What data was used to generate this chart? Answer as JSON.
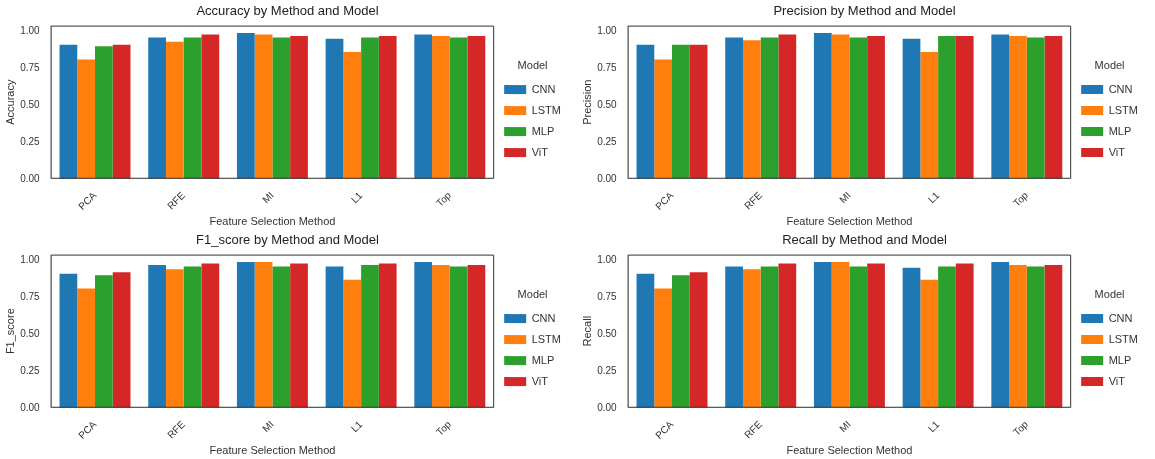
{
  "chart_data": [
    {
      "type": "bar",
      "title": "Accuracy by Method and Model",
      "xlabel": "Feature Selection Method",
      "ylabel": "Accuracy",
      "legend_title": "Model",
      "legend": "right",
      "grid": false,
      "categories": [
        "PCA",
        "RFE",
        "MI",
        "L1",
        "Top"
      ],
      "ylim": [
        0,
        1.04
      ],
      "yticks": [
        {
          "value": 0,
          "label": "0.00"
        },
        {
          "value": 0.25,
          "label": "0.25"
        },
        {
          "value": 0.5,
          "label": "0.50"
        },
        {
          "value": 0.75,
          "label": "0.75"
        },
        {
          "value": 1,
          "label": "1.00"
        }
      ],
      "series": [
        {
          "name": "CNN",
          "color": "#1f77b4",
          "values": [
            0.91,
            0.96,
            0.99,
            0.95,
            0.98
          ]
        },
        {
          "name": "LSTM",
          "color": "#ff7f0e",
          "values": [
            0.81,
            0.93,
            0.98,
            0.86,
            0.97
          ]
        },
        {
          "name": "MLP",
          "color": "#2ca02c",
          "values": [
            0.9,
            0.96,
            0.96,
            0.96,
            0.96
          ]
        },
        {
          "name": "ViT",
          "color": "#d62728",
          "values": [
            0.91,
            0.98,
            0.97,
            0.97,
            0.97
          ]
        }
      ]
    },
    {
      "type": "bar",
      "title": "Precision by Method and Model",
      "xlabel": "Feature Selection Method",
      "ylabel": "Precision",
      "legend_title": "Model",
      "legend": "right",
      "grid": false,
      "categories": [
        "PCA",
        "RFE",
        "MI",
        "L1",
        "Top"
      ],
      "ylim": [
        0,
        1.04
      ],
      "yticks": [
        {
          "value": 0,
          "label": "0.00"
        },
        {
          "value": 0.25,
          "label": "0.25"
        },
        {
          "value": 0.5,
          "label": "0.50"
        },
        {
          "value": 0.75,
          "label": "0.75"
        },
        {
          "value": 1,
          "label": "1.00"
        }
      ],
      "series": [
        {
          "name": "CNN",
          "color": "#1f77b4",
          "values": [
            0.91,
            0.96,
            0.99,
            0.95,
            0.98
          ]
        },
        {
          "name": "LSTM",
          "color": "#ff7f0e",
          "values": [
            0.81,
            0.94,
            0.98,
            0.86,
            0.97
          ]
        },
        {
          "name": "MLP",
          "color": "#2ca02c",
          "values": [
            0.91,
            0.96,
            0.96,
            0.97,
            0.96
          ]
        },
        {
          "name": "ViT",
          "color": "#d62728",
          "values": [
            0.91,
            0.98,
            0.97,
            0.97,
            0.97
          ]
        }
      ]
    },
    {
      "type": "bar",
      "title": "F1_score by Method and Model",
      "xlabel": "Feature Selection Method",
      "ylabel": "F1_score",
      "legend_title": "Model",
      "legend": "right",
      "grid": false,
      "categories": [
        "PCA",
        "RFE",
        "MI",
        "L1",
        "Top"
      ],
      "ylim": [
        0,
        1.04
      ],
      "yticks": [
        {
          "value": 0,
          "label": "0.00"
        },
        {
          "value": 0.25,
          "label": "0.25"
        },
        {
          "value": 0.5,
          "label": "0.50"
        },
        {
          "value": 0.75,
          "label": "0.75"
        },
        {
          "value": 1,
          "label": "1.00"
        }
      ],
      "series": [
        {
          "name": "CNN",
          "color": "#1f77b4",
          "values": [
            0.91,
            0.97,
            0.99,
            0.96,
            0.99
          ]
        },
        {
          "name": "LSTM",
          "color": "#ff7f0e",
          "values": [
            0.81,
            0.94,
            0.99,
            0.87,
            0.97
          ]
        },
        {
          "name": "MLP",
          "color": "#2ca02c",
          "values": [
            0.9,
            0.96,
            0.96,
            0.97,
            0.96
          ]
        },
        {
          "name": "ViT",
          "color": "#d62728",
          "values": [
            0.92,
            0.98,
            0.98,
            0.98,
            0.97
          ]
        }
      ]
    },
    {
      "type": "bar",
      "title": "Recall by Method and Model",
      "xlabel": "Feature Selection Method",
      "ylabel": "Recall",
      "legend_title": "Model",
      "legend": "right",
      "grid": false,
      "categories": [
        "PCA",
        "RFE",
        "MI",
        "L1",
        "Top"
      ],
      "ylim": [
        0,
        1.04
      ],
      "yticks": [
        {
          "value": 0,
          "label": "0.00"
        },
        {
          "value": 0.25,
          "label": "0.25"
        },
        {
          "value": 0.5,
          "label": "0.50"
        },
        {
          "value": 0.75,
          "label": "0.75"
        },
        {
          "value": 1,
          "label": "1.00"
        }
      ],
      "series": [
        {
          "name": "CNN",
          "color": "#1f77b4",
          "values": [
            0.91,
            0.96,
            0.99,
            0.95,
            0.99
          ]
        },
        {
          "name": "LSTM",
          "color": "#ff7f0e",
          "values": [
            0.81,
            0.94,
            0.99,
            0.87,
            0.97
          ]
        },
        {
          "name": "MLP",
          "color": "#2ca02c",
          "values": [
            0.9,
            0.96,
            0.96,
            0.96,
            0.96
          ]
        },
        {
          "name": "ViT",
          "color": "#d62728",
          "values": [
            0.92,
            0.98,
            0.98,
            0.98,
            0.97
          ]
        }
      ]
    }
  ]
}
